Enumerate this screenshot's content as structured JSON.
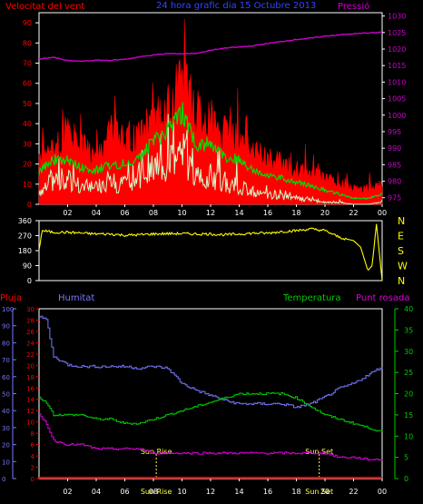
{
  "colors": {
    "background": "#000000",
    "axis_frame": "#ffffff",
    "wind_max": "#ff0000",
    "wind_avg": "#00dd00",
    "wind_min": "#ccffcc",
    "pressure": "#cc00cc",
    "direction": "#ffff00",
    "rain": "#ff0000",
    "humidity": "#7777ff",
    "temperature": "#00cc00",
    "dewpoint": "#dd00dd",
    "sun_marker": "#ffff44"
  },
  "chart_data": [
    {
      "type": "line",
      "title": "24 hora grafic dia 15 Octubre 2013",
      "label_left": "Velocitat del vent",
      "label_right": "Pressió",
      "x_ticks": [
        "02",
        "04",
        "06",
        "08",
        "10",
        "12",
        "14",
        "16",
        "18",
        "20",
        "22",
        "00"
      ],
      "y_left_ticks": [
        0,
        10,
        20,
        30,
        40,
        50,
        60,
        70,
        80,
        90
      ],
      "y_right_ticks": [
        975,
        980,
        985,
        990,
        995,
        1000,
        1005,
        1010,
        1015,
        1020,
        1025,
        1030
      ],
      "ylim_left": [
        0,
        95
      ],
      "ylim_right": [
        973,
        1031
      ],
      "hours": [
        0,
        1,
        2,
        3,
        4,
        5,
        6,
        7,
        8,
        9,
        10,
        11,
        12,
        13,
        14,
        15,
        16,
        17,
        18,
        19,
        20,
        21,
        22,
        23,
        24
      ],
      "series": [
        {
          "key": "wind_max",
          "values": [
            25,
            28,
            34,
            28,
            26,
            36,
            32,
            34,
            44,
            48,
            62,
            45,
            42,
            35,
            32,
            26,
            23,
            20,
            17,
            15,
            14,
            10,
            8,
            8,
            10
          ]
        },
        {
          "key": "wind_avg",
          "values": [
            16,
            22,
            22,
            18,
            17,
            20,
            20,
            22,
            32,
            36,
            46,
            30,
            30,
            24,
            22,
            17,
            15,
            13,
            11,
            9,
            7,
            5,
            3,
            3,
            5
          ]
        },
        {
          "key": "wind_min",
          "values": [
            6,
            12,
            12,
            8,
            8,
            10,
            10,
            12,
            18,
            20,
            26,
            14,
            14,
            10,
            9,
            6,
            5,
            4,
            3,
            2,
            1,
            1,
            0,
            0,
            1
          ]
        },
        {
          "key": "pressure",
          "values": [
            1017,
            1017.5,
            1016.5,
            1016.3,
            1016.6,
            1016.6,
            1016.9,
            1017.6,
            1018.2,
            1018.6,
            1018.6,
            1018.7,
            1019.6,
            1020.3,
            1020.6,
            1021,
            1021.7,
            1022.3,
            1022.9,
            1023.3,
            1023.9,
            1024.3,
            1024.6,
            1024.9,
            1025
          ]
        }
      ]
    },
    {
      "type": "line",
      "title": "",
      "y_ticks": [
        0,
        90,
        180,
        270,
        360
      ],
      "y_labels_right": [
        "N",
        "W",
        "S",
        "E",
        "N"
      ],
      "ylim": [
        0,
        360
      ],
      "hours": [
        0,
        0.2,
        1,
        2,
        3,
        4,
        5,
        6,
        7,
        8,
        9,
        10,
        11,
        12,
        13,
        14,
        15,
        16,
        17,
        18,
        19,
        20,
        21,
        22,
        22.5,
        23,
        23.3,
        23.6,
        24
      ],
      "series": [
        {
          "key": "direction",
          "values": [
            180,
            300,
            290,
            290,
            285,
            280,
            280,
            272,
            275,
            280,
            282,
            282,
            280,
            280,
            275,
            280,
            285,
            285,
            295,
            300,
            310,
            300,
            260,
            240,
            200,
            60,
            90,
            340,
            0
          ]
        }
      ]
    },
    {
      "type": "line",
      "title": "",
      "label_rain": "Pluja",
      "label_humidity": "Humitat",
      "label_temperature": "Temperatura",
      "label_dewpoint": "Punt rosada",
      "rain_ticks": [
        0,
        2,
        4,
        6,
        8,
        10,
        12,
        14,
        16,
        18,
        20,
        22,
        24,
        26,
        28,
        30
      ],
      "humidity_ticks": [
        0,
        10,
        20,
        30,
        40,
        50,
        60,
        70,
        80,
        90,
        100
      ],
      "temp_ticks": [
        0,
        5,
        10,
        15,
        20,
        25,
        30,
        35,
        40
      ],
      "rain_lim": [
        0,
        30
      ],
      "humidity_lim": [
        0,
        100
      ],
      "temp_lim": [
        0,
        40
      ],
      "sun_rise_label": "Sun Rise",
      "sun_set_label": "Sun Set",
      "sun_time_label": "Sun Rise",
      "sun_time_label_2": "Sun Set",
      "sunrise_hour": 8.2,
      "sunset_hour": 19.6,
      "hours": [
        0,
        0.5,
        1,
        2,
        3,
        4,
        5,
        6,
        7,
        8,
        9,
        10,
        11,
        12,
        13,
        14,
        15,
        16,
        17,
        18,
        19,
        20,
        21,
        22,
        23,
        24
      ],
      "series": [
        {
          "key": "humidity",
          "values": [
            95,
            94,
            72,
            67,
            66,
            66,
            66,
            66,
            65,
            66,
            65,
            56,
            52,
            49,
            46,
            44,
            44,
            44,
            44,
            42,
            44,
            48,
            53,
            56,
            61,
            66
          ]
        },
        {
          "key": "temperature",
          "values": [
            19,
            18,
            15,
            15,
            15,
            14,
            14,
            13,
            13,
            14,
            15,
            16,
            17,
            18,
            19,
            20,
            20,
            20,
            20,
            19,
            17,
            15,
            14,
            13,
            12,
            11
          ]
        },
        {
          "key": "dewpoint",
          "values": [
            15,
            13,
            9,
            8,
            8,
            7,
            7,
            7,
            7,
            6,
            6,
            6,
            6,
            6,
            6,
            6,
            6,
            6,
            6,
            6,
            6,
            6,
            5,
            5,
            4.5,
            4.5
          ]
        },
        {
          "key": "rain",
          "values": [
            0,
            0,
            0,
            0,
            0,
            0,
            0,
            0,
            0,
            0,
            0,
            0,
            0,
            0,
            0,
            0,
            0,
            0,
            0,
            0,
            0,
            0,
            0,
            0,
            0,
            0
          ]
        }
      ]
    }
  ]
}
